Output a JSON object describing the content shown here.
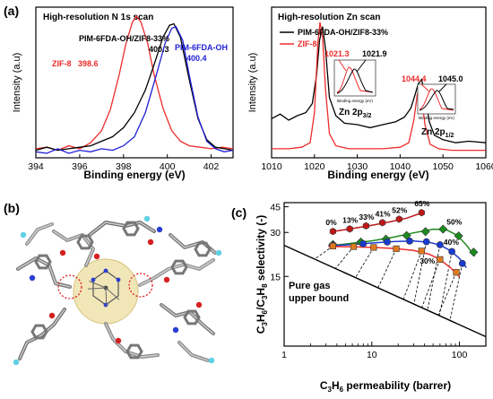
{
  "panel_labels": {
    "a": "(a)",
    "b": "(b)",
    "c": "(c)"
  },
  "colors": {
    "black": "#000000",
    "red": "#ee2b2b",
    "blue": "#1f1fd6",
    "green": "#1e8a1e",
    "orange": "#e07a1f",
    "navy": "#1a3bd1",
    "darkred": "#c01818"
  },
  "chart_data": [
    {
      "id": "n1s",
      "type": "line",
      "title": "High-resolution N 1s scan",
      "xlabel": "Binding energy (eV)",
      "ylabel": "Intensity (a.u)",
      "xlim": [
        394,
        403
      ],
      "xticks": [
        394,
        396,
        398,
        400,
        402
      ],
      "ylim": [
        0,
        1
      ],
      "legend": "top",
      "series": [
        {
          "name": "ZIF-8",
          "color": "#ee2b2b",
          "peak_label": "398.6",
          "x": [
            394.0,
            394.5,
            395.0,
            395.5,
            396.0,
            396.5,
            397.0,
            397.4,
            397.8,
            398.1,
            398.4,
            398.6,
            398.8,
            399.1,
            399.4,
            399.8,
            400.2,
            400.6,
            401.0,
            401.5,
            402.0,
            402.5,
            403.0
          ],
          "y": [
            0.06,
            0.07,
            0.05,
            0.08,
            0.06,
            0.1,
            0.18,
            0.32,
            0.55,
            0.75,
            0.9,
            0.94,
            0.9,
            0.76,
            0.55,
            0.33,
            0.18,
            0.11,
            0.08,
            0.07,
            0.06,
            0.07,
            0.06
          ]
        },
        {
          "name": "PIM-6FDA-OH/ZIF8-33%",
          "color": "#000000",
          "peak_label": "400.3",
          "x": [
            394.0,
            394.5,
            395.0,
            395.5,
            396.0,
            396.5,
            397.0,
            397.5,
            398.0,
            398.5,
            399.0,
            399.4,
            399.8,
            400.1,
            400.3,
            400.6,
            401.0,
            401.4,
            401.8,
            402.2,
            402.6,
            403.0
          ],
          "y": [
            0.05,
            0.07,
            0.05,
            0.06,
            0.07,
            0.08,
            0.11,
            0.14,
            0.2,
            0.3,
            0.45,
            0.62,
            0.8,
            0.88,
            0.89,
            0.8,
            0.52,
            0.26,
            0.12,
            0.07,
            0.06,
            0.05
          ]
        },
        {
          "name": "PIM-6FDA-OH",
          "color": "#1f1fd6",
          "peak_label": "400.4",
          "x": [
            394.0,
            394.5,
            395.0,
            395.5,
            396.0,
            396.5,
            397.0,
            397.5,
            398.0,
            398.5,
            399.0,
            399.5,
            399.9,
            400.2,
            400.4,
            400.7,
            401.0,
            401.4,
            401.8,
            402.2,
            402.6,
            403.0
          ],
          "y": [
            0.04,
            0.03,
            0.06,
            0.03,
            0.05,
            0.04,
            0.06,
            0.05,
            0.08,
            0.14,
            0.3,
            0.55,
            0.76,
            0.86,
            0.87,
            0.78,
            0.55,
            0.27,
            0.11,
            0.06,
            0.04,
            0.05
          ]
        }
      ]
    },
    {
      "id": "zn",
      "type": "line",
      "title": "High-resolution Zn scan",
      "xlabel": "Binding energy (eV)",
      "ylabel": "Intensity (a.u)",
      "xlim": [
        1010,
        1060
      ],
      "xticks": [
        1010,
        1020,
        1030,
        1040,
        1050,
        1060
      ],
      "ylim": [
        0,
        1
      ],
      "legend": "top-left",
      "annotations": {
        "zn2p32": {
          "label": "Zn 2p",
          "sub": "3/2",
          "red": "1021.3",
          "black": "1021.9"
        },
        "zn2p12": {
          "label": "Zn 2p",
          "sub": "1/2",
          "red": "1044.4",
          "black": "1045.0"
        },
        "inset_xlabel": "Binding energy (eV)"
      },
      "series": [
        {
          "name": "PIM-6FDA-OH/ZIF8-33%",
          "color": "#000000",
          "x": [
            1010,
            1012,
            1014,
            1016,
            1018,
            1019.5,
            1020.5,
            1021.2,
            1021.9,
            1022.6,
            1023.5,
            1025,
            1027,
            1030,
            1033,
            1036,
            1039,
            1041,
            1042.5,
            1043.5,
            1044.2,
            1045.0,
            1045.8,
            1046.8,
            1048,
            1050,
            1053,
            1056,
            1060
          ],
          "y": [
            0.26,
            0.29,
            0.25,
            0.28,
            0.3,
            0.36,
            0.55,
            0.78,
            0.87,
            0.72,
            0.4,
            0.28,
            0.23,
            0.22,
            0.2,
            0.22,
            0.24,
            0.27,
            0.33,
            0.42,
            0.49,
            0.52,
            0.42,
            0.24,
            0.15,
            0.12,
            0.1,
            0.11,
            0.1
          ]
        },
        {
          "name": "ZIF-8",
          "color": "#ee2b2b",
          "x": [
            1010,
            1014,
            1017,
            1019,
            1020,
            1020.8,
            1021.3,
            1021.9,
            1022.6,
            1023.5,
            1025,
            1028,
            1032,
            1036,
            1040,
            1042,
            1043.2,
            1044.0,
            1044.4,
            1045.0,
            1045.8,
            1047,
            1049,
            1052,
            1056,
            1060
          ],
          "y": [
            0.06,
            0.06,
            0.07,
            0.1,
            0.3,
            0.76,
            0.9,
            0.8,
            0.45,
            0.16,
            0.08,
            0.06,
            0.06,
            0.06,
            0.07,
            0.1,
            0.25,
            0.42,
            0.46,
            0.4,
            0.22,
            0.09,
            0.06,
            0.05,
            0.05,
            0.05
          ]
        }
      ]
    },
    {
      "id": "robeson",
      "type": "scatter",
      "xlabel": "C3H6 permeability (barrer)",
      "ylabel": "C3H6/C3H8 selectivity (-)",
      "xscale": "log",
      "yscale": "log",
      "xlim": [
        1,
        200
      ],
      "ylim": [
        5,
        48
      ],
      "xticks": [
        1,
        10,
        100
      ],
      "yticks": [
        15,
        30,
        45
      ],
      "annotations": {
        "upper_bound_line1": "Pure gas",
        "upper_bound_line2": "upper bound"
      },
      "upper_bound": {
        "x": [
          1,
          200
        ],
        "y": [
          24.5,
          5.8
        ]
      },
      "series": [
        {
          "name": "row-1",
          "marker": "hexagon",
          "color": "#c01818",
          "x": [
            3.6,
            5.6,
            8.6,
            13.2,
            20.5,
            37.0
          ],
          "y": [
            30.5,
            31.7,
            33.3,
            35.0,
            37.0,
            41.0
          ],
          "labels": [
            "0%",
            "13%",
            "33%",
            "41%",
            "52%",
            "65%"
          ]
        },
        {
          "name": "row-2",
          "marker": "diamond",
          "color": "#1e8a1e",
          "x": [
            3.6,
            7.5,
            14.5,
            25.0,
            41.0,
            65.0,
            98.0,
            145.0
          ],
          "y": [
            24.8,
            25.8,
            27.0,
            28.6,
            30.4,
            31.6,
            28.4,
            22.0
          ],
          "labels": [
            "",
            "",
            "",
            "",
            "",
            "50%",
            "",
            ""
          ]
        },
        {
          "name": "row-3",
          "marker": "circle",
          "color": "#1a3bd1",
          "x": [
            3.6,
            8.0,
            15.0,
            27.0,
            42.0,
            60.0,
            82.0,
            108.0
          ],
          "y": [
            24.5,
            25.1,
            25.8,
            26.2,
            25.9,
            24.7,
            22.2,
            18.4
          ],
          "labels": [
            "",
            "",
            "",
            "",
            "",
            "40%",
            "",
            ""
          ]
        },
        {
          "name": "row-4",
          "marker": "square",
          "color": "#e07a1f",
          "x": [
            3.6,
            6.2,
            10.5,
            19.0,
            37.0,
            60.0,
            92.0
          ],
          "y": [
            24.2,
            24.0,
            23.7,
            23.2,
            22.4,
            19.6,
            16.0
          ],
          "labels": [
            "",
            "",
            "",
            "",
            "30%",
            "",
            ""
          ]
        }
      ],
      "fit_curves": [
        {
          "color": "#c01818",
          "x": [
            3.6,
            6,
            10,
            16,
            25,
            37
          ],
          "y": [
            30.4,
            31.9,
            33.6,
            35.4,
            37.6,
            40.8
          ]
        },
        {
          "color": "#1e8a1e",
          "x": [
            3.2,
            6,
            10,
            18,
            30,
            50,
            70,
            95,
            120,
            150
          ],
          "y": [
            24.3,
            25.3,
            26.3,
            27.9,
            29.8,
            31.6,
            31.4,
            28.6,
            24.6,
            20.6
          ]
        },
        {
          "color": "#1a3bd1",
          "x": [
            3.2,
            6,
            10,
            18,
            30,
            45,
            60,
            80,
            100,
            120
          ],
          "y": [
            24.2,
            24.8,
            25.4,
            26.0,
            26.2,
            25.7,
            24.6,
            22.4,
            19.9,
            17.2
          ]
        },
        {
          "color": "#ee2b2b",
          "x": [
            3.2,
            6,
            10,
            18,
            30,
            45,
            60,
            80,
            100
          ],
          "y": [
            24.0,
            23.9,
            23.7,
            23.3,
            22.6,
            21.3,
            19.6,
            17.1,
            14.9
          ]
        }
      ]
    }
  ]
}
